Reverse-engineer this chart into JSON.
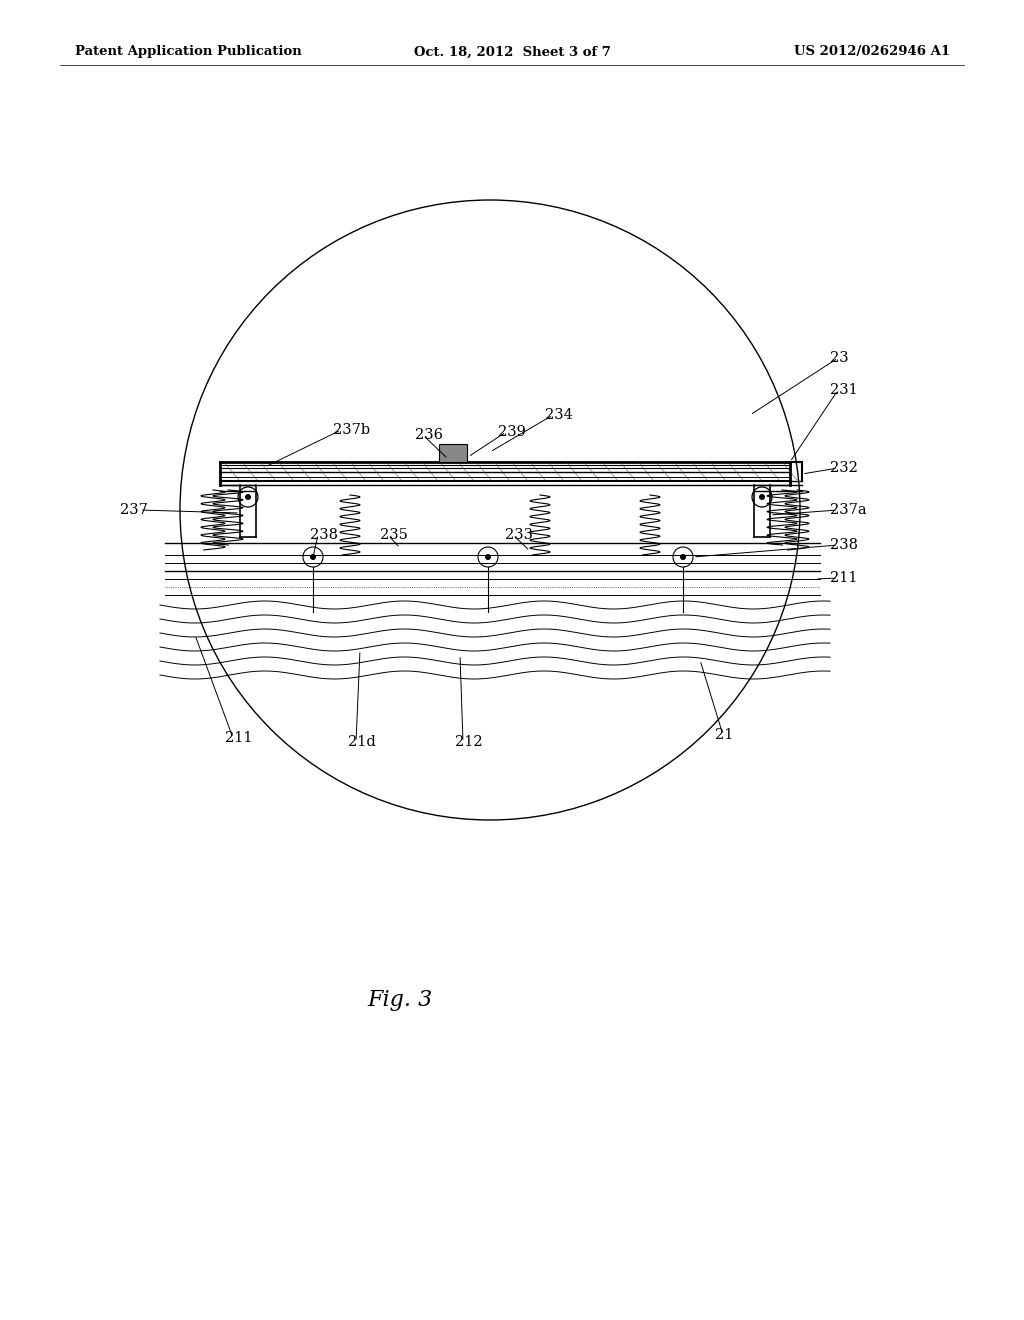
{
  "bg_color": "#ffffff",
  "title_left": "Patent Application Publication",
  "title_center": "Oct. 18, 2012  Sheet 3 of 7",
  "title_right": "US 2012/0262946 A1",
  "fig_label": "Fig. 3",
  "header_fontsize": 9.5,
  "label_fontsize": 10.5
}
